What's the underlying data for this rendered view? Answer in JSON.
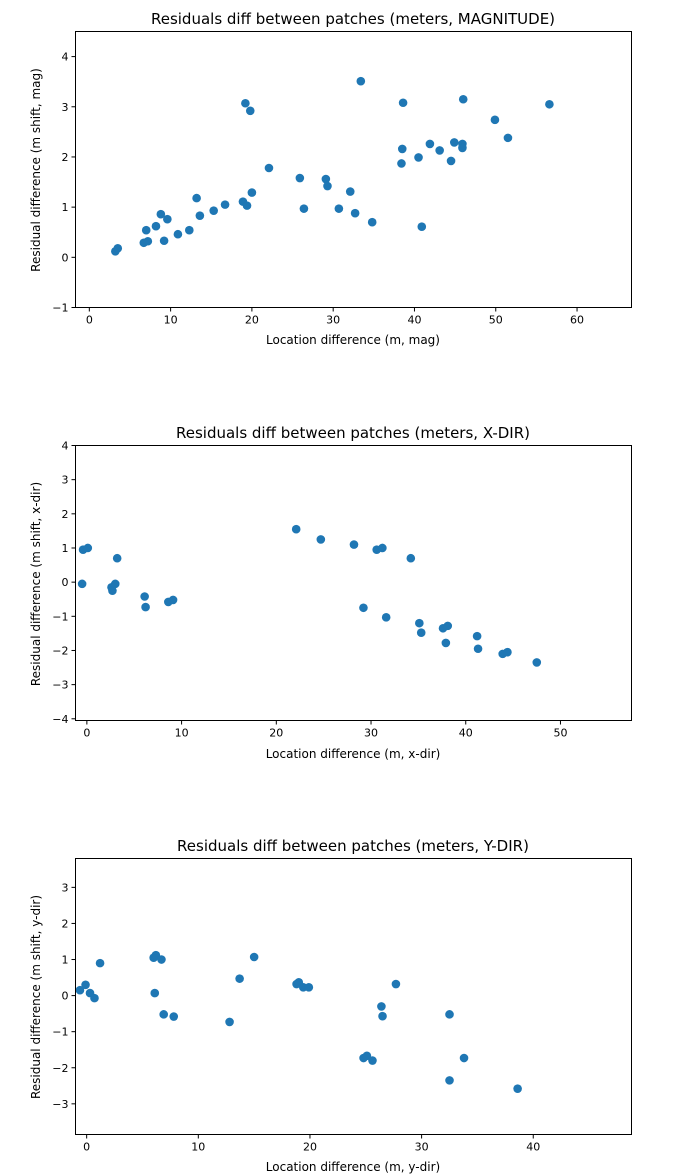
{
  "chart_data": [
    {
      "type": "scatter",
      "title": "Residuals diff between patches (meters, MAGNITUDE)",
      "xlabel": "Location difference (m, mag)",
      "ylabel": "Residual difference (m shift, mag)",
      "xlim": [
        -1.7,
        66.7
      ],
      "ylim": [
        -1,
        4.5
      ],
      "xticks": [
        0,
        10,
        20,
        30,
        40,
        50,
        60
      ],
      "yticks": [
        -1,
        0,
        1,
        2,
        3,
        4
      ],
      "xtick_labels": [
        "0",
        "10",
        "20",
        "30",
        "40",
        "50",
        "60"
      ],
      "ytick_labels": [
        "−1",
        "0",
        "1",
        "2",
        "3",
        "4"
      ],
      "grid": false,
      "color": "#1f77b4",
      "points": [
        [
          3.2,
          0.12
        ],
        [
          3.5,
          0.18
        ],
        [
          6.7,
          0.29
        ],
        [
          7.2,
          0.32
        ],
        [
          7.0,
          0.54
        ],
        [
          8.2,
          0.62
        ],
        [
          8.8,
          0.86
        ],
        [
          9.6,
          0.76
        ],
        [
          9.2,
          0.33
        ],
        [
          10.9,
          0.46
        ],
        [
          12.3,
          0.54
        ],
        [
          13.2,
          1.18
        ],
        [
          13.6,
          0.83
        ],
        [
          15.3,
          0.93
        ],
        [
          16.7,
          1.05
        ],
        [
          18.9,
          1.11
        ],
        [
          19.4,
          1.03
        ],
        [
          20.0,
          1.29
        ],
        [
          22.1,
          1.78
        ],
        [
          19.2,
          3.07
        ],
        [
          19.8,
          2.92
        ],
        [
          25.9,
          1.58
        ],
        [
          26.4,
          0.97
        ],
        [
          29.1,
          1.56
        ],
        [
          29.3,
          1.42
        ],
        [
          30.7,
          0.97
        ],
        [
          32.1,
          1.31
        ],
        [
          32.7,
          0.88
        ],
        [
          33.4,
          3.51
        ],
        [
          34.8,
          0.7
        ],
        [
          38.4,
          1.87
        ],
        [
          38.5,
          2.16
        ],
        [
          38.6,
          3.08
        ],
        [
          40.5,
          1.99
        ],
        [
          40.9,
          0.61
        ],
        [
          41.9,
          2.26
        ],
        [
          43.1,
          2.13
        ],
        [
          44.5,
          1.92
        ],
        [
          44.9,
          2.29
        ],
        [
          45.9,
          2.26
        ],
        [
          45.9,
          2.18
        ],
        [
          46.0,
          3.15
        ],
        [
          49.9,
          2.74
        ],
        [
          51.5,
          2.38
        ],
        [
          56.6,
          3.05
        ]
      ]
    },
    {
      "type": "scatter",
      "title": "Residuals diff between patches (meters, X-DIR)",
      "xlabel": "Location difference (m, x-dir)",
      "ylabel": "Residual difference (m shift, x-dir)",
      "xlim": [
        -1.2,
        57.5
      ],
      "ylim": [
        -4.05,
        4.0
      ],
      "xticks": [
        0,
        10,
        20,
        30,
        40,
        50
      ],
      "yticks": [
        -4,
        -3,
        -2,
        -1,
        0,
        1,
        2,
        3,
        4
      ],
      "xtick_labels": [
        "0",
        "10",
        "20",
        "30",
        "40",
        "50"
      ],
      "ytick_labels": [
        "−4",
        "−3",
        "−2",
        "−1",
        "0",
        "1",
        "2",
        "3",
        "4"
      ],
      "grid": false,
      "color": "#1f77b4",
      "points": [
        [
          -0.4,
          0.95
        ],
        [
          0.1,
          1.0
        ],
        [
          -0.5,
          -0.05
        ],
        [
          2.6,
          -0.15
        ],
        [
          2.7,
          -0.25
        ],
        [
          3.0,
          -0.05
        ],
        [
          3.2,
          0.7
        ],
        [
          6.1,
          -0.42
        ],
        [
          6.2,
          -0.73
        ],
        [
          8.6,
          -0.58
        ],
        [
          9.1,
          -0.52
        ],
        [
          22.1,
          1.55
        ],
        [
          24.7,
          1.25
        ],
        [
          28.2,
          1.1
        ],
        [
          29.2,
          -0.75
        ],
        [
          30.6,
          0.95
        ],
        [
          31.2,
          1.0
        ],
        [
          31.6,
          -1.03
        ],
        [
          34.2,
          0.7
        ],
        [
          35.1,
          -1.2
        ],
        [
          35.3,
          -1.48
        ],
        [
          37.6,
          -1.35
        ],
        [
          38.1,
          -1.28
        ],
        [
          37.9,
          -1.78
        ],
        [
          41.2,
          -1.58
        ],
        [
          41.3,
          -1.95
        ],
        [
          43.9,
          -2.1
        ],
        [
          44.4,
          -2.05
        ],
        [
          47.5,
          -2.35
        ]
      ]
    },
    {
      "type": "scatter",
      "title": "Residuals diff between patches (meters, Y-DIR)",
      "xlabel": "Location difference (m, y-dir)",
      "ylabel": "Residual difference (m shift, y-dir)",
      "xlim": [
        -1.0,
        48.8
      ],
      "ylim": [
        -3.85,
        3.8
      ],
      "xticks": [
        0,
        10,
        20,
        30,
        40
      ],
      "yticks": [
        -3,
        -2,
        -1,
        0,
        1,
        2,
        3
      ],
      "xtick_labels": [
        "0",
        "10",
        "20",
        "30",
        "40"
      ],
      "ytick_labels": [
        "−3",
        "−2",
        "−1",
        "0",
        "1",
        "2",
        "3"
      ],
      "grid": false,
      "color": "#1f77b4",
      "points": [
        [
          -0.6,
          0.15
        ],
        [
          -0.1,
          0.3
        ],
        [
          0.3,
          0.07
        ],
        [
          0.7,
          -0.07
        ],
        [
          1.2,
          0.9
        ],
        [
          6.0,
          1.05
        ],
        [
          6.2,
          1.12
        ],
        [
          6.7,
          1.0
        ],
        [
          6.1,
          0.07
        ],
        [
          6.9,
          -0.52
        ],
        [
          7.8,
          -0.58
        ],
        [
          12.8,
          -0.73
        ],
        [
          13.7,
          0.47
        ],
        [
          15.0,
          1.07
        ],
        [
          18.8,
          0.32
        ],
        [
          19.0,
          0.37
        ],
        [
          19.4,
          0.23
        ],
        [
          19.9,
          0.23
        ],
        [
          24.8,
          -1.73
        ],
        [
          25.1,
          -1.67
        ],
        [
          25.6,
          -1.8
        ],
        [
          26.4,
          -0.3
        ],
        [
          26.5,
          -0.57
        ],
        [
          27.7,
          0.32
        ],
        [
          32.5,
          -0.52
        ],
        [
          32.5,
          -2.35
        ],
        [
          33.8,
          -1.73
        ],
        [
          38.6,
          -2.58
        ]
      ]
    }
  ]
}
